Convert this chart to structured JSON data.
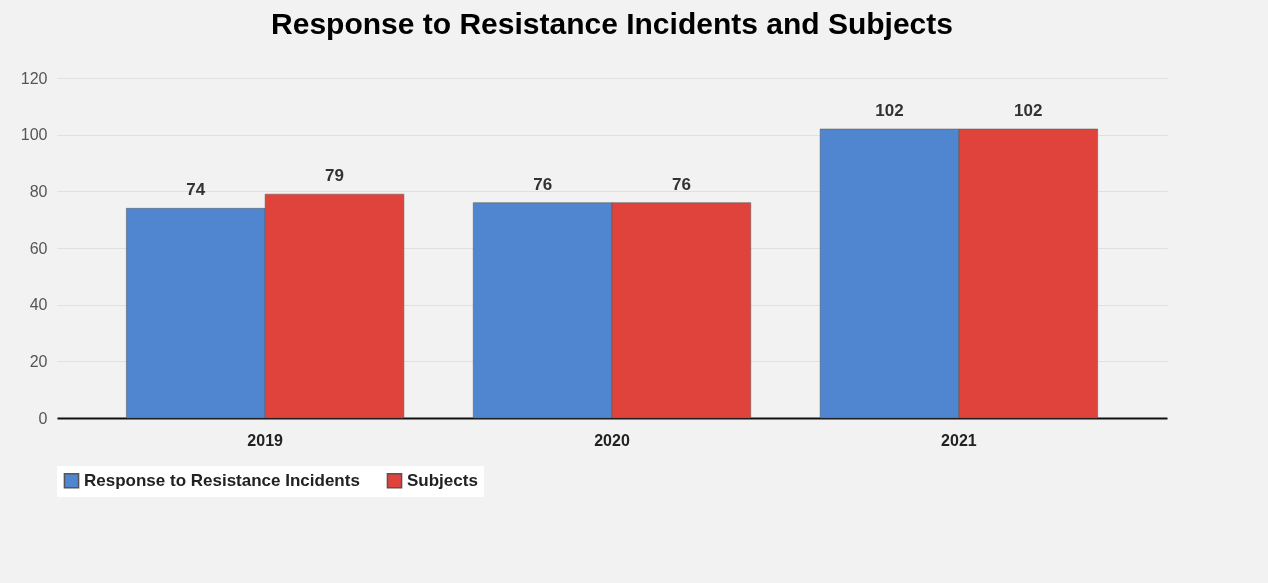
{
  "chart_data": {
    "type": "bar",
    "title": "Response to Resistance Incidents and Subjects",
    "categories": [
      "2019",
      "2020",
      "2021"
    ],
    "series": [
      {
        "name": "Response to Resistance Incidents",
        "color": "#4f86cf",
        "values": [
          74,
          76,
          102
        ]
      },
      {
        "name": "Subjects",
        "color": "#e0433b",
        "values": [
          79,
          76,
          102
        ]
      }
    ],
    "ylim": [
      0,
      120
    ],
    "yticks": [
      0,
      20,
      40,
      60,
      80,
      100,
      120
    ],
    "grid": "y",
    "legend": "bottom",
    "data_labels": true
  }
}
